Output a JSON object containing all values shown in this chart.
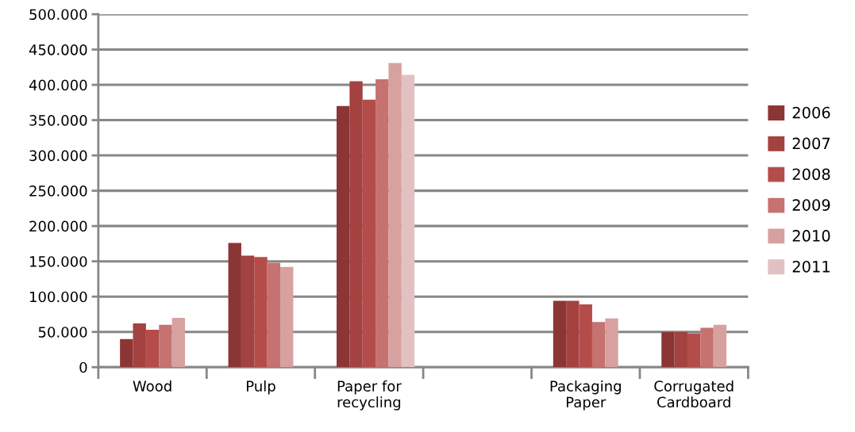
{
  "chart_data": {
    "type": "bar",
    "categories": [
      "Wood",
      "Pulp",
      "Paper for\nrecycling",
      null,
      "Packaging\nPaper",
      "Corrugated\nCardboard"
    ],
    "series": [
      {
        "name": "2006",
        "color": "#8b3535",
        "values": [
          40000,
          176000,
          370000,
          null,
          94000,
          50000
        ]
      },
      {
        "name": "2007",
        "color": "#a34240",
        "values": [
          62000,
          158000,
          405000,
          null,
          94000,
          50000
        ]
      },
      {
        "name": "2008",
        "color": "#b44d49",
        "values": [
          53000,
          156000,
          379000,
          null,
          89000,
          48000
        ]
      },
      {
        "name": "2009",
        "color": "#c67270",
        "values": [
          60000,
          148000,
          408000,
          null,
          64000,
          56000
        ]
      },
      {
        "name": "2010",
        "color": "#d7a1a0",
        "values": [
          70000,
          142000,
          431000,
          null,
          69000,
          60000
        ]
      },
      {
        "name": "2011",
        "color": "#e2c1c2",
        "values": [
          null,
          null,
          414000,
          null,
          null,
          null
        ]
      }
    ],
    "ylim": [
      0,
      500000
    ],
    "yticks": [
      {
        "value": 0,
        "label": "0"
      },
      {
        "value": 50000,
        "label": "50.000"
      },
      {
        "value": 100000,
        "label": "100.000"
      },
      {
        "value": 150000,
        "label": "150.000"
      },
      {
        "value": 200000,
        "label": "200.000"
      },
      {
        "value": 250000,
        "label": "250.000"
      },
      {
        "value": 300000,
        "label": "300.000"
      },
      {
        "value": 350000,
        "label": "350.000"
      },
      {
        "value": 400000,
        "label": "400.000"
      },
      {
        "value": 450000,
        "label": "450.000"
      },
      {
        "value": 500000,
        "label": "500.000"
      }
    ],
    "grid": "y",
    "legend": "right"
  }
}
